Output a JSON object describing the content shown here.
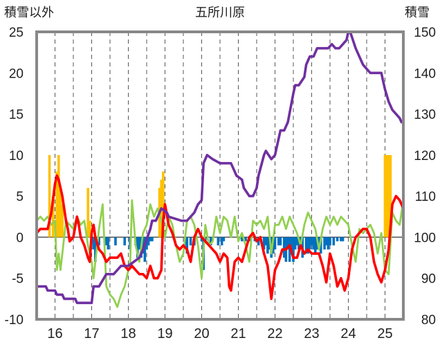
{
  "chart_data": {
    "type": "line",
    "title": "五所川原",
    "left_axis_label": "積雪以外",
    "right_axis_label": "積雪",
    "left_ylim": [
      -10,
      25
    ],
    "left_ticks": [
      25,
      20,
      15,
      10,
      5,
      0,
      -5,
      -10
    ],
    "right_ylim": [
      80,
      150
    ],
    "right_ticks": [
      150,
      140,
      130,
      120,
      110,
      100,
      90,
      80
    ],
    "x_ticks": [
      "16",
      "17",
      "18",
      "19",
      "20",
      "21",
      "22",
      "23",
      "24",
      "25"
    ],
    "xlim": [
      15.5,
      25.5
    ],
    "grid": "vertical dashed, horizontal at 0",
    "colors": {
      "purple": "#7030a0",
      "red": "#ff0000",
      "green": "#92d050",
      "orange": "#ffc000",
      "blue": "#0070c0"
    },
    "series": [
      {
        "axis": "right",
        "color": "purple",
        "x": [
          15.5,
          15.75,
          15.8,
          16.0,
          16.05,
          16.2,
          16.25,
          16.55,
          16.6,
          17.0,
          17.05,
          17.2,
          17.4,
          17.6,
          17.8,
          18.0,
          18.3,
          18.4,
          18.6,
          18.65,
          18.75,
          18.85,
          18.9,
          19.05,
          19.1,
          19.45,
          19.6,
          19.8,
          19.9,
          20.0,
          20.05,
          20.15,
          20.3,
          20.5,
          20.8,
          20.95,
          21.1,
          21.15,
          21.3,
          21.4,
          21.5,
          21.55,
          21.7,
          21.75,
          21.9,
          22.0,
          22.15,
          22.25,
          22.35,
          22.5,
          22.55,
          22.65,
          22.8,
          22.85,
          22.95,
          23.05,
          23.15,
          23.25,
          23.35,
          23.45,
          23.55,
          23.65,
          23.75,
          23.85,
          23.95,
          24.0,
          24.05,
          24.2,
          24.4,
          24.5,
          24.6,
          24.75,
          24.9,
          24.95,
          25.0,
          25.1,
          25.2,
          25.3,
          25.4,
          25.45,
          25.5
        ],
        "values": [
          88,
          88,
          87,
          87,
          86,
          86,
          85,
          85,
          84,
          84,
          88,
          88,
          91,
          91,
          93,
          93,
          95,
          97,
          102,
          104,
          104,
          106,
          107,
          106,
          105,
          104,
          104,
          106,
          108,
          109,
          118,
          120,
          119,
          118,
          118,
          115,
          114,
          112,
          110,
          110,
          112,
          115,
          120,
          121,
          119,
          120,
          126,
          126,
          128,
          135,
          137,
          137,
          139,
          142,
          144,
          144,
          146,
          146,
          146,
          146,
          147,
          146,
          146,
          147,
          148,
          150,
          150,
          146,
          142,
          141,
          140,
          140,
          140,
          138,
          136,
          133,
          131,
          130,
          129,
          128,
          128
        ]
      },
      {
        "axis": "left",
        "color": "red",
        "x": [
          15.5,
          15.6,
          15.7,
          15.8,
          15.9,
          16.0,
          16.05,
          16.1,
          16.2,
          16.3,
          16.35,
          16.4,
          16.5,
          16.6,
          16.65,
          16.7,
          16.8,
          16.9,
          16.95,
          17.0,
          17.05,
          17.1,
          17.2,
          17.3,
          17.4,
          17.5,
          17.6,
          17.7,
          17.8,
          17.9,
          18.0,
          18.1,
          18.2,
          18.3,
          18.4,
          18.5,
          18.6,
          18.7,
          18.8,
          18.9,
          18.95,
          19.0,
          19.1,
          19.2,
          19.3,
          19.4,
          19.5,
          19.6,
          19.7,
          19.8,
          19.9,
          20.0,
          20.1,
          20.2,
          20.3,
          20.4,
          20.5,
          20.6,
          20.7,
          20.75,
          20.8,
          20.9,
          21.0,
          21.1,
          21.2,
          21.3,
          21.4,
          21.5,
          21.6,
          21.65,
          21.7,
          21.8,
          21.9,
          22.0,
          22.1,
          22.2,
          22.3,
          22.4,
          22.5,
          22.6,
          22.7,
          22.8,
          22.9,
          23.0,
          23.1,
          23.2,
          23.3,
          23.4,
          23.5,
          23.6,
          23.7,
          23.8,
          23.9,
          24.0,
          24.1,
          24.2,
          24.3,
          24.4,
          24.5,
          24.6,
          24.7,
          24.8,
          24.9,
          25.0,
          25.1,
          25.2,
          25.3,
          25.4,
          25.5
        ],
        "values": [
          0.5,
          1.0,
          1.0,
          1.0,
          3.0,
          6.5,
          7.5,
          7.0,
          5.0,
          2.0,
          1.0,
          -0.5,
          0,
          2.5,
          1.5,
          0,
          -1.0,
          -2.5,
          -3.0,
          0.5,
          1.5,
          0,
          -1.5,
          -2.0,
          -3.0,
          -2.5,
          -2.5,
          -2.5,
          -2.0,
          -3.5,
          -4.0,
          -3.5,
          -4.0,
          -4.5,
          -4.5,
          -5.0,
          -3.5,
          -5.0,
          -5.0,
          -4.0,
          2.0,
          4.0,
          1.5,
          0.5,
          -1.0,
          -1.5,
          -1.0,
          -1.5,
          -3.0,
          0,
          1.0,
          0,
          -0.5,
          -1.0,
          -1.5,
          -2.0,
          -3.0,
          -2.0,
          -2.5,
          -6.0,
          -6.5,
          -3.0,
          -2.5,
          -3.0,
          -1.5,
          0,
          0.5,
          -0.5,
          0,
          -1.0,
          -2.0,
          -3.5,
          -7.5,
          -4.0,
          -3.0,
          -1.5,
          -1.5,
          -1.0,
          -2.5,
          -2.5,
          -1.0,
          -2.0,
          -1.5,
          -2.0,
          -2.0,
          -2.0,
          -3.5,
          -5.5,
          -2.0,
          -3.5,
          -6.0,
          -5.0,
          -6.5,
          -5.0,
          -1.5,
          0,
          0.5,
          1.0,
          1.0,
          0,
          -3.0,
          -4.5,
          -5.5,
          -4.0,
          -1.5,
          4.0,
          5.0,
          4.5,
          3.5
        ]
      },
      {
        "axis": "left",
        "color": "green",
        "x": [
          15.5,
          15.6,
          15.7,
          15.8,
          15.9,
          16.0,
          16.05,
          16.1,
          16.15,
          16.2,
          16.3,
          16.4,
          16.5,
          16.6,
          16.7,
          16.8,
          16.9,
          17.0,
          17.05,
          17.1,
          17.2,
          17.3,
          17.4,
          17.5,
          17.6,
          17.7,
          17.8,
          17.9,
          18.0,
          18.05,
          18.1,
          18.2,
          18.3,
          18.4,
          18.5,
          18.6,
          18.7,
          18.8,
          18.9,
          19.0,
          19.1,
          19.2,
          19.3,
          19.4,
          19.5,
          19.6,
          19.7,
          19.8,
          19.9,
          20.0,
          20.1,
          20.2,
          20.3,
          20.4,
          20.5,
          20.6,
          20.7,
          20.8,
          20.9,
          21.0,
          21.1,
          21.2,
          21.3,
          21.4,
          21.5,
          21.6,
          21.7,
          21.8,
          21.9,
          22.0,
          22.1,
          22.2,
          22.3,
          22.4,
          22.5,
          22.6,
          22.7,
          22.8,
          22.9,
          23.0,
          23.1,
          23.2,
          23.3,
          23.4,
          23.5,
          23.6,
          23.7,
          23.8,
          23.9,
          24.0,
          24.1,
          24.2,
          24.3,
          24.4,
          24.5,
          24.6,
          24.7,
          24.8,
          24.9,
          25.0,
          25.1,
          25.2,
          25.3,
          25.4,
          25.5
        ],
        "values": [
          2.0,
          2.5,
          2.0,
          2.5,
          1.5,
          2.0,
          -4.0,
          -2.0,
          -4.0,
          -2.0,
          2.0,
          1.5,
          1.0,
          2.5,
          1.5,
          2.0,
          -1.0,
          -3.0,
          -5.0,
          -3.0,
          1.0,
          4.0,
          -6.0,
          -7.0,
          -7.5,
          -8.5,
          -7.0,
          -6.0,
          -4.0,
          -3.0,
          4.5,
          -1.0,
          -3.0,
          0.5,
          1.5,
          4.0,
          2.5,
          3.5,
          2.0,
          0,
          2.5,
          1.5,
          -1.0,
          -3.0,
          -2.0,
          2.0,
          2.5,
          1.5,
          -1.0,
          -5.0,
          1.5,
          -1.0,
          -0.5,
          2.5,
          0.5,
          2.5,
          2.0,
          0,
          2.5,
          -0.5,
          0.5,
          -1.0,
          -3.0,
          2.0,
          1.5,
          2.0,
          1.0,
          2.5,
          -2.0,
          1.5,
          1.5,
          2.5,
          1.0,
          2.5,
          1.5,
          0.5,
          -1.0,
          1.5,
          3.0,
          2.0,
          1.0,
          -1.5,
          1.0,
          2.5,
          1.5,
          2.5,
          1.5,
          2.5,
          2.0,
          1.5,
          -1.0,
          -3.0,
          1.0,
          0.5,
          1.0,
          1.5,
          0.5,
          -2.0,
          0.5,
          -4.0,
          -4.5,
          3.0,
          2.0,
          1.5,
          4.5
        ]
      }
    ],
    "bars": [
      {
        "axis": "left",
        "color": "orange",
        "x": [
          15.85,
          15.95,
          16.05,
          16.1,
          16.15,
          16.2,
          16.9,
          16.95,
          18.85,
          18.9,
          18.95,
          25.0,
          25.05,
          25.1,
          25.15
        ],
        "values": [
          10,
          5,
          8,
          10,
          6,
          4,
          6,
          2,
          6,
          7,
          8,
          10,
          10,
          10,
          10
        ]
      },
      {
        "axis": "left",
        "color": "blue",
        "x": [
          17.05,
          17.1,
          17.2,
          17.4,
          17.45,
          17.65,
          17.9,
          18.05,
          18.2,
          18.25,
          18.3,
          18.35,
          18.4,
          18.45,
          18.5,
          18.55,
          18.6,
          18.65,
          19.55,
          19.6,
          19.7,
          19.8,
          20.0,
          20.05,
          20.1,
          20.25,
          20.45,
          20.55,
          20.6,
          21.1,
          21.2,
          21.3,
          21.45,
          21.55,
          21.7,
          21.75,
          21.8,
          21.85,
          21.9,
          21.95,
          22.0,
          22.1,
          22.15,
          22.25,
          22.3,
          22.35,
          22.4,
          22.45,
          22.5,
          22.55,
          22.6,
          22.65,
          22.7,
          22.75,
          22.85,
          22.9,
          22.95,
          23.0,
          23.05,
          23.1,
          23.15,
          23.2,
          23.25,
          23.35,
          23.4,
          23.45,
          23.5,
          23.6,
          23.7,
          23.8,
          23.85
        ],
        "values": [
          -1.5,
          -3.0,
          -1.0,
          -1.0,
          -1.5,
          -1.0,
          -1.0,
          -1.5,
          -1.0,
          -2.5,
          -1.5,
          -2.5,
          -2.0,
          -3.0,
          -1.5,
          -1.0,
          -0.5,
          -0.5,
          -1.0,
          -2.0,
          -1.0,
          -1.0,
          -0.5,
          -4.0,
          -0.5,
          -1.0,
          -1.0,
          -1.0,
          -0.5,
          -0.5,
          -0.5,
          -0.5,
          -0.5,
          -1.0,
          -1.5,
          -1.0,
          -2.0,
          -1.5,
          -2.5,
          -2.0,
          -1.5,
          -1.0,
          -1.0,
          -2.5,
          -3.0,
          -1.5,
          -3.0,
          -2.0,
          -3.0,
          -1.5,
          -1.0,
          -1.5,
          -1.0,
          -2.5,
          -2.0,
          -2.0,
          -1.5,
          -1.0,
          -1.5,
          -2.0,
          -1.5,
          -1.0,
          -2.0,
          -1.5,
          -1.0,
          -1.5,
          -1.0,
          -1.0,
          -0.5,
          -0.5,
          -0.5
        ]
      }
    ]
  }
}
